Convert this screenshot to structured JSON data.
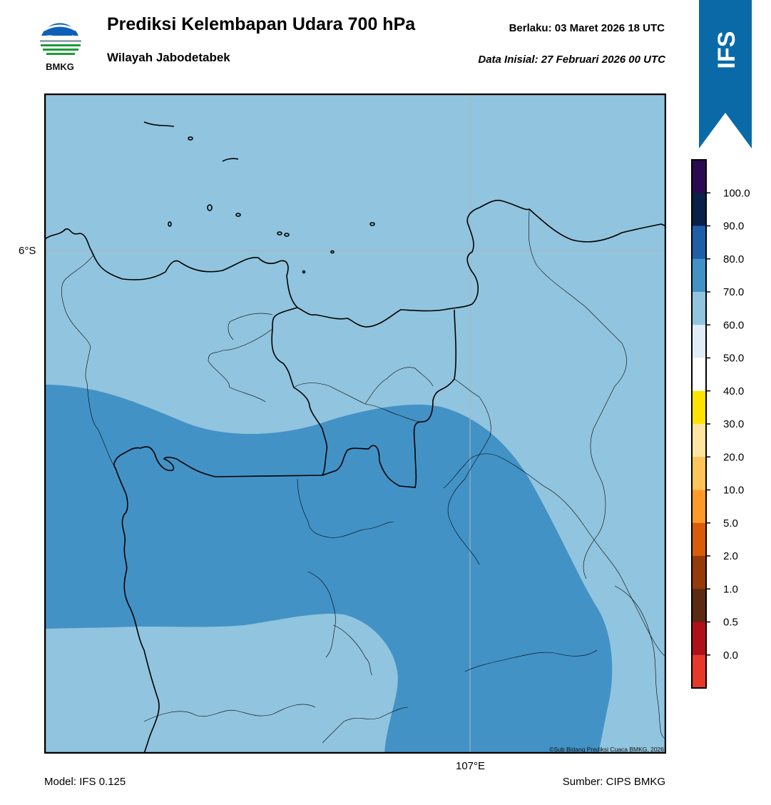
{
  "header": {
    "title": "Prediksi Kelembapan Udara 700 hPa",
    "subtitle": "Wilayah Jabodetabek",
    "valid": "Berlaku:  03 Maret 2026 18 UTC",
    "init": "Data Inisial:  27 Februari 2026 00 UTC"
  },
  "logo": {
    "text": "BMKG",
    "icon": "bmkg-logo"
  },
  "ribbon": {
    "text": "IFS",
    "color": "#0a6aa8"
  },
  "map": {
    "lat_label": "6°S",
    "lon_label": "107°E",
    "copyright": "©Sub Bidang Prediksi Cuaca BMKG, 2026",
    "fill_colors": {
      "60-70": "#91c4de",
      "70-80": "#4292c6",
      "sea": "#91c4de"
    }
  },
  "footer": {
    "model": "Model: IFS 0.125",
    "source": "Sumber: CIPS BMKG"
  },
  "colorbar": {
    "labels": [
      "100.0",
      "90.0",
      "80.0",
      "70.0",
      "60.0",
      "50.0",
      "40.0",
      "30.0",
      "20.0",
      "10.0",
      "5.0",
      "2.0",
      "1.0",
      "0.5",
      "0.0"
    ],
    "colors": [
      "#2b0a52",
      "#08204a",
      "#1f5fa8",
      "#4292c6",
      "#91c4de",
      "#e1edf6",
      "#ffffff",
      "#ffe300",
      "#ffe6a0",
      "#ffc45a",
      "#ff9a2a",
      "#d95c0a",
      "#963a0a",
      "#5a2a12",
      "#b0101a",
      "#e8382a"
    ]
  }
}
